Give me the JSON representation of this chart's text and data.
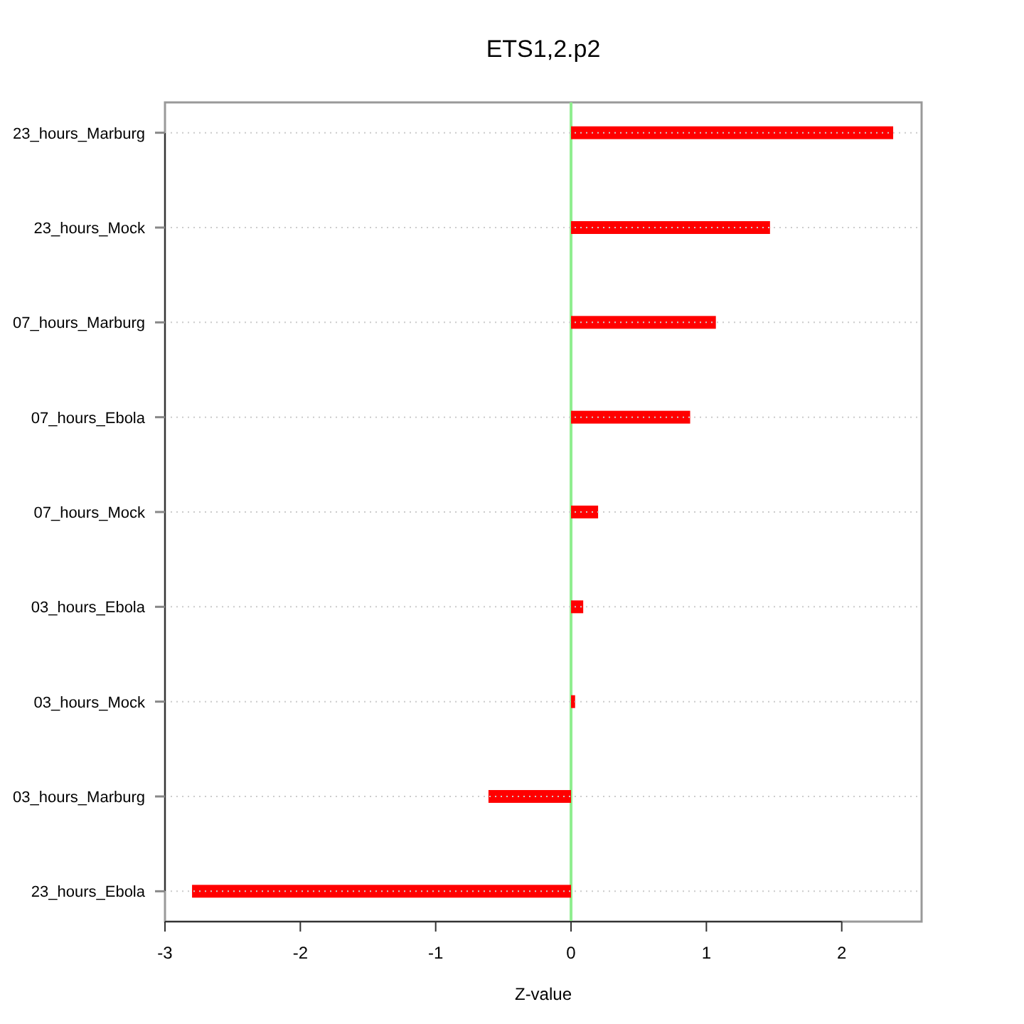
{
  "chart_data": {
    "type": "bar",
    "orientation": "horizontal",
    "title": "ETS1,2.p2",
    "xlabel": "Z-value",
    "categories": [
      "23_hours_Marburg",
      "23_hours_Mock",
      "07_hours_Marburg",
      "07_hours_Ebola",
      "07_hours_Mock",
      "03_hours_Ebola",
      "03_hours_Mock",
      "03_hours_Marburg",
      "23_hours_Ebola"
    ],
    "values": [
      2.38,
      1.47,
      1.07,
      0.88,
      0.2,
      0.09,
      0.03,
      -0.61,
      -2.8
    ],
    "color": "#ff0000",
    "xlim": [
      -3.0,
      2.59
    ],
    "xticks": [
      -3,
      -2,
      -1,
      0,
      1,
      2
    ],
    "grid": "y",
    "ref_lines": [
      {
        "axis": "x",
        "value": 0,
        "color": "#90ee90"
      }
    ]
  }
}
